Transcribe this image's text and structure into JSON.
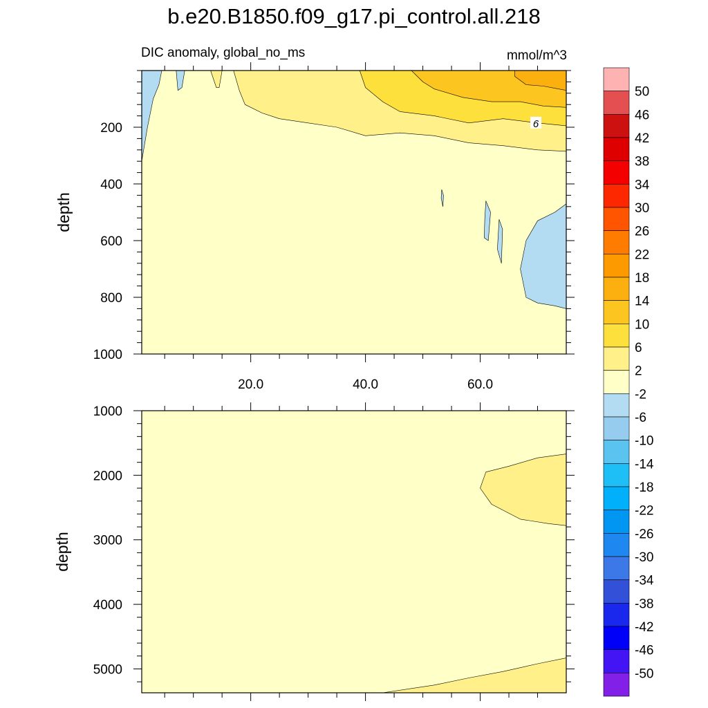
{
  "chart_data": [
    {
      "type": "heatmap",
      "panel": "upper",
      "title": "b.e20.B1850.f09_g17.pi_control.all.218",
      "subtitle_left": "DIC anomaly, global_no_ms",
      "subtitle_right": "mmol/m^3",
      "ylabel": "depth",
      "xlim": [
        1,
        75
      ],
      "ylim": [
        0,
        1000
      ],
      "y_reversed": true,
      "x_ticks": [
        20,
        40,
        60
      ],
      "x_tick_labels": [
        "20.0",
        "40.0",
        "60.0"
      ],
      "y_ticks": [
        200,
        400,
        600,
        800,
        1000
      ],
      "y_tick_labels": [
        "200",
        "400",
        "600",
        "800",
        "1000"
      ],
      "background_level": "-2 to 2",
      "regions": [
        {
          "level": "-6 to -2",
          "color": "#b3dcf2",
          "polygon": [
            [
              1,
              0
            ],
            [
              4.5,
              0
            ],
            [
              4,
              50
            ],
            [
              3,
              100
            ],
            [
              2,
              200
            ],
            [
              1,
              320
            ]
          ]
        },
        {
          "level": "-6 to -2",
          "color": "#b3dcf2",
          "polygon": [
            [
              7,
              0
            ],
            [
              8.5,
              0
            ],
            [
              8,
              60
            ],
            [
              7.3,
              70
            ]
          ]
        },
        {
          "level": "-6 to -2",
          "color": "#b3dcf2",
          "polygon": [
            [
              61,
              460
            ],
            [
              61.8,
              500
            ],
            [
              61.4,
              600
            ],
            [
              60.7,
              590
            ],
            [
              60.8,
              520
            ]
          ]
        },
        {
          "level": "-6 to -2",
          "color": "#b3dcf2",
          "polygon": [
            [
              63.3,
              525
            ],
            [
              63.9,
              560
            ],
            [
              63.7,
              680
            ],
            [
              63,
              630
            ]
          ]
        },
        {
          "level": "-6 to -2",
          "color": "#b3dcf2",
          "polygon": [
            [
              75,
              470
            ],
            [
              73,
              500
            ],
            [
              70,
              530
            ],
            [
              68,
              600
            ],
            [
              67,
              700
            ],
            [
              68,
              800
            ],
            [
              70,
              820
            ],
            [
              73,
              830
            ],
            [
              75,
              840
            ]
          ]
        },
        {
          "level": "-6 to -2",
          "color": "#b3dcf2",
          "polygon": [
            [
              53.3,
              420
            ],
            [
              53.6,
              440
            ],
            [
              53.5,
              480
            ],
            [
              53.2,
              450
            ]
          ]
        },
        {
          "level": "2 to 6",
          "color": "#fff08a",
          "polygon": [
            [
              13,
              0
            ],
            [
              15,
              0
            ],
            [
              14.5,
              60
            ],
            [
              14,
              60
            ]
          ]
        },
        {
          "level": "2 to 6",
          "color": "#fff08a",
          "polygon": [
            [
              17,
              0
            ],
            [
              75,
              0
            ],
            [
              75,
              285
            ],
            [
              70,
              280
            ],
            [
              64,
              265
            ],
            [
              58,
              255
            ],
            [
              52,
              230
            ],
            [
              46,
              220
            ],
            [
              40,
              230
            ],
            [
              35,
              200
            ],
            [
              30,
              185
            ],
            [
              25,
              170
            ],
            [
              22,
              150
            ],
            [
              19,
              120
            ],
            [
              18,
              70
            ]
          ]
        },
        {
          "level": "6 to 10",
          "color": "#fde03c",
          "polygon": [
            [
              39,
              0
            ],
            [
              75,
              0
            ],
            [
              75,
              195
            ],
            [
              70,
              185
            ],
            [
              64,
              170
            ],
            [
              58,
              185
            ],
            [
              52,
              160
            ],
            [
              46,
              145
            ],
            [
              43,
              110
            ],
            [
              40,
              60
            ]
          ]
        },
        {
          "level": "10 to 14",
          "color": "#fdc520",
          "polygon": [
            [
              48,
              0
            ],
            [
              75,
              0
            ],
            [
              75,
              130
            ],
            [
              71,
              125
            ],
            [
              67,
              110
            ],
            [
              62,
              110
            ],
            [
              57,
              95
            ],
            [
              52,
              65
            ],
            [
              50,
              40
            ]
          ]
        },
        {
          "level": "14 to 18",
          "color": "#fcb010",
          "polygon": [
            [
              66,
              0
            ],
            [
              75,
              0
            ],
            [
              75,
              70
            ],
            [
              71,
              55
            ],
            [
              68,
              50
            ],
            [
              66,
              20
            ]
          ]
        }
      ],
      "contour_labels": [
        {
          "text": "6",
          "x": 69.7,
          "y": 185
        }
      ]
    },
    {
      "type": "heatmap",
      "panel": "lower",
      "ylabel": "depth",
      "xlim": [
        1,
        75
      ],
      "ylim": [
        1000,
        5370
      ],
      "y_reversed": true,
      "x_ticks": [
        20,
        40,
        60
      ],
      "y_ticks": [
        1000,
        2000,
        3000,
        4000,
        5000
      ],
      "y_tick_labels": [
        "1000",
        "2000",
        "3000",
        "4000",
        "5000"
      ],
      "background_level": "-2 to 2",
      "regions": [
        {
          "level": "2 to 6",
          "color": "#fff08a",
          "polygon": [
            [
              75,
              1670
            ],
            [
              70,
              1730
            ],
            [
              65,
              1860
            ],
            [
              61,
              1950
            ],
            [
              60,
              2200
            ],
            [
              62,
              2450
            ],
            [
              67,
              2680
            ],
            [
              72,
              2750
            ],
            [
              75,
              2780
            ]
          ]
        },
        {
          "level": "2 to 6",
          "color": "#fff08a",
          "polygon": [
            [
              43,
              5370
            ],
            [
              52,
              5250
            ],
            [
              58,
              5140
            ],
            [
              64,
              5040
            ],
            [
              70,
              4920
            ],
            [
              75,
              4830
            ],
            [
              75,
              5370
            ]
          ]
        }
      ]
    }
  ],
  "colorbar": {
    "labels": [
      "50",
      "46",
      "42",
      "38",
      "34",
      "30",
      "26",
      "22",
      "18",
      "14",
      "10",
      "6",
      "2",
      "-2",
      "-6",
      "-10",
      "-14",
      "-18",
      "-22",
      "-26",
      "-30",
      "-34",
      "-38",
      "-42",
      "-46",
      "-50"
    ],
    "colors": [
      "#feb2b2",
      "#e44f52",
      "#cd1010",
      "#de0000",
      "#f50000",
      "#fd2800",
      "#ff5500",
      "#ff7c00",
      "#fd9a00",
      "#fcb010",
      "#fdc520",
      "#fde03c",
      "#fff08a",
      "#ffffc8",
      "#b3dcf2",
      "#96cdee",
      "#5ac3f0",
      "#1ebef7",
      "#00b0fa",
      "#0096f2",
      "#1e87f0",
      "#3c78e8",
      "#3250d8",
      "#1a28ee",
      "#0000f8",
      "#4314f4",
      "#8220e8"
    ]
  }
}
